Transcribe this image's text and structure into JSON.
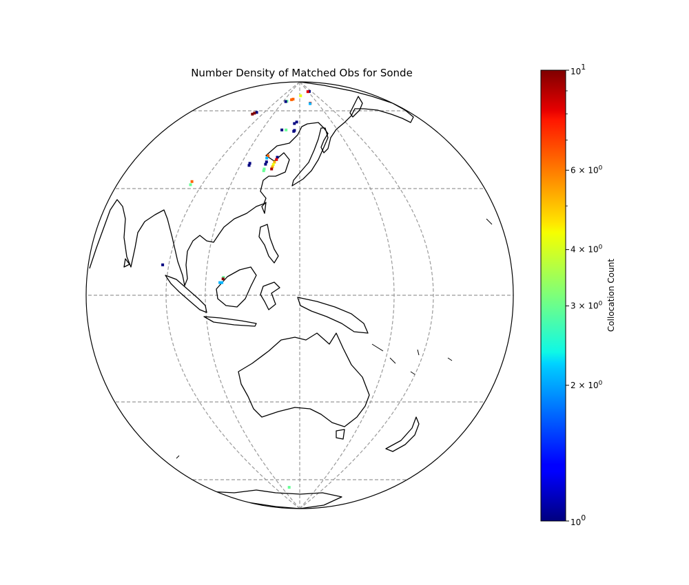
{
  "title": "Number Density of Matched Obs for Sonde",
  "colorbar": {
    "label": "Collocation Count",
    "scale": "log",
    "colormap": "jet",
    "range": [
      1,
      10
    ],
    "ticks": [
      {
        "value": 10,
        "base": "10",
        "exp": "1",
        "mult": ""
      },
      {
        "value": 6,
        "base": "10",
        "exp": "0",
        "mult": "6 × "
      },
      {
        "value": 4,
        "base": "10",
        "exp": "0",
        "mult": "4 × "
      },
      {
        "value": 3,
        "base": "10",
        "exp": "0",
        "mult": "3 × "
      },
      {
        "value": 2,
        "base": "10",
        "exp": "0",
        "mult": "2 × "
      },
      {
        "value": 1,
        "base": "10",
        "exp": "0",
        "mult": ""
      }
    ],
    "minor_ticks": [
      5,
      7,
      8,
      9
    ]
  },
  "map": {
    "projection": "orthographic",
    "central_longitude": 120,
    "central_latitude": 0,
    "gridlines": "dashed gray",
    "grid_latitudes": [
      -60,
      -30,
      0,
      30,
      60
    ],
    "grid_longitudes": [
      60,
      90,
      120,
      150,
      180
    ]
  },
  "chart_data": {
    "type": "scatter",
    "title": "Number Density of Matched Obs for Sonde",
    "colorbar_label": "Collocation Count",
    "points": [
      {
        "lon": 128.7,
        "lat": 72.8,
        "count": 1
      },
      {
        "lon": 127.3,
        "lat": 72.6,
        "count": 8
      },
      {
        "lon": 120.7,
        "lat": 69.2,
        "count": 4
      },
      {
        "lon": 115.5,
        "lat": 66.8,
        "count": 6
      },
      {
        "lon": 114.5,
        "lat": 66.4,
        "count": 6
      },
      {
        "lon": 111.7,
        "lat": 65.4,
        "count": 3
      },
      {
        "lon": 111.0,
        "lat": 65.2,
        "count": 1
      },
      {
        "lon": 126.5,
        "lat": 64.2,
        "count": 7
      },
      {
        "lon": 126.3,
        "lat": 63.9,
        "count": 2
      },
      {
        "lon": 97.0,
        "lat": 59.0,
        "count": 1
      },
      {
        "lon": 96.0,
        "lat": 58.6,
        "count": 10
      },
      {
        "lon": 95.2,
        "lat": 58.1,
        "count": 10
      },
      {
        "lon": 118.6,
        "lat": 54.3,
        "count": 1
      },
      {
        "lon": 117.6,
        "lat": 53.6,
        "count": 1
      },
      {
        "lon": 112.4,
        "lat": 50.8,
        "count": 1
      },
      {
        "lon": 114.2,
        "lat": 50.8,
        "count": 3
      },
      {
        "lon": 117.8,
        "lat": 50.6,
        "count": 1
      },
      {
        "lon": 117.5,
        "lat": 50.2,
        "count": 1
      },
      {
        "lon": 108.7,
        "lat": 40.8,
        "count": 6
      },
      {
        "lon": 112.1,
        "lat": 40.3,
        "count": 1
      },
      {
        "lon": 108.4,
        "lat": 40.0,
        "count": 2
      },
      {
        "lon": 111.9,
        "lat": 39.5,
        "count": 8
      },
      {
        "lon": 108.5,
        "lat": 38.7,
        "count": 1
      },
      {
        "lon": 111.3,
        "lat": 38.6,
        "count": 5
      },
      {
        "lon": 102.7,
        "lat": 38.2,
        "count": 1
      },
      {
        "lon": 108.3,
        "lat": 37.9,
        "count": 1
      },
      {
        "lon": 111.0,
        "lat": 37.8,
        "count": 4
      },
      {
        "lon": 102.6,
        "lat": 37.5,
        "count": 1
      },
      {
        "lon": 110.8,
        "lat": 37.0,
        "count": 5
      },
      {
        "lon": 110.6,
        "lat": 36.3,
        "count": 9
      },
      {
        "lon": 108.1,
        "lat": 36.3,
        "count": 3
      },
      {
        "lon": 108.0,
        "lat": 35.7,
        "count": 3
      },
      {
        "lon": 83.4,
        "lat": 32.2,
        "count": 6
      },
      {
        "lon": 83.3,
        "lat": 31.2,
        "count": 3
      },
      {
        "lon": 79.6,
        "lat": 8.2,
        "count": 1
      },
      {
        "lon": 99.0,
        "lat": 4.8,
        "count": 3
      },
      {
        "lon": 98.9,
        "lat": 4.4,
        "count": 10
      },
      {
        "lon": 98.0,
        "lat": 3.4,
        "count": 2
      },
      {
        "lon": 98.6,
        "lat": 3.4,
        "count": 2
      },
      {
        "lon": 113.5,
        "lat": -64.2,
        "count": 3
      }
    ]
  }
}
